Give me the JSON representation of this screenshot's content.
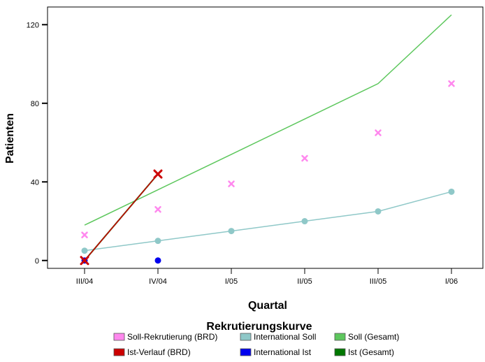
{
  "chart_data": {
    "type": "line",
    "title": "",
    "xlabel": "Quartal",
    "ylabel": "Patienten",
    "categories": [
      "III/04",
      "IV/04",
      "I/05",
      "II/05",
      "III/05",
      "I/06"
    ],
    "ylim": [
      -4,
      129
    ],
    "yticks": [
      0,
      40,
      80,
      120
    ],
    "grid": false,
    "legend_title": "Rekrutierungskurve",
    "legend_position": "bottom",
    "series": [
      {
        "name": "Soll-Rekrutierung (BRD)",
        "kind": "scatter",
        "marker": "x",
        "color": "#ff88ee",
        "values": [
          13,
          26,
          39,
          52,
          65,
          90
        ]
      },
      {
        "name": "International Soll",
        "kind": "line-marker",
        "marker": "circle",
        "color": "#8fc8c8",
        "values": [
          5,
          10,
          15,
          20,
          25,
          35
        ]
      },
      {
        "name": "Soll (Gesamt)",
        "kind": "line",
        "color": "#5dc75d",
        "values": [
          18,
          36,
          54,
          72,
          90,
          125
        ]
      },
      {
        "name": "Ist-Verlauf (BRD)",
        "kind": "line-marker",
        "marker": "x",
        "color": "#cc0000",
        "values": [
          0,
          44,
          null,
          null,
          null,
          null
        ]
      },
      {
        "name": "International Ist",
        "kind": "scatter",
        "marker": "circle",
        "color": "#0000ee",
        "values": [
          0,
          0,
          null,
          null,
          null,
          null
        ]
      },
      {
        "name": "Ist (Gesamt)",
        "kind": "line",
        "color": "#007700",
        "values": [
          0,
          44,
          null,
          null,
          null,
          null
        ]
      }
    ]
  }
}
